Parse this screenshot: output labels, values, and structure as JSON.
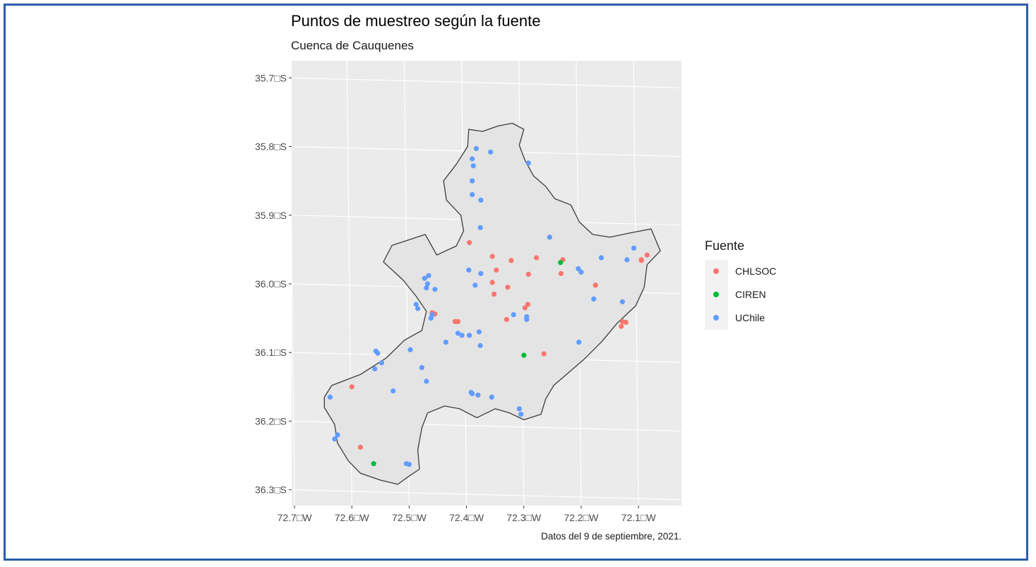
{
  "chart_data": {
    "type": "scatter",
    "title": "Puntos de muestreo según la fuente",
    "subtitle": "Cuenca de Cauquenes",
    "caption": "Datos del 9 de septiembre, 2021.",
    "xlabel": "",
    "ylabel": "",
    "xlim": [
      -72.705,
      -72.025
    ],
    "ylim": [
      -36.323,
      -35.675
    ],
    "grid": true,
    "legend_title": "Fuente",
    "legend_position": "right",
    "x_ticks": [
      {
        "value": -72.7,
        "label": "72.7□W"
      },
      {
        "value": -72.6,
        "label": "72.6□W"
      },
      {
        "value": -72.5,
        "label": "72.5□W"
      },
      {
        "value": -72.4,
        "label": "72.4□W"
      },
      {
        "value": -72.3,
        "label": "72.3□W"
      },
      {
        "value": -72.2,
        "label": "72.2□W"
      },
      {
        "value": -72.1,
        "label": "72.1□W"
      }
    ],
    "y_ticks": [
      {
        "value": -35.7,
        "label": "35.7□S"
      },
      {
        "value": -35.8,
        "label": "35.8□S"
      },
      {
        "value": -35.9,
        "label": "35.9□S"
      },
      {
        "value": -36.0,
        "label": "36.0□S"
      },
      {
        "value": -36.1,
        "label": "36.1□S"
      },
      {
        "value": -36.2,
        "label": "36.2□S"
      },
      {
        "value": -36.3,
        "label": "36.3□S"
      }
    ],
    "boundary": [
      [
        -72.648,
        -36.165
      ],
      [
        -72.635,
        -36.148
      ],
      [
        -72.585,
        -36.132
      ],
      [
        -72.54,
        -36.108
      ],
      [
        -72.508,
        -36.082
      ],
      [
        -72.478,
        -36.068
      ],
      [
        -72.47,
        -36.04
      ],
      [
        -72.488,
        -36.018
      ],
      [
        -72.51,
        -35.995
      ],
      [
        -72.545,
        -35.968
      ],
      [
        -72.53,
        -35.944
      ],
      [
        -72.472,
        -35.928
      ],
      [
        -72.452,
        -35.958
      ],
      [
        -72.418,
        -35.945
      ],
      [
        -72.405,
        -35.923
      ],
      [
        -72.41,
        -35.9
      ],
      [
        -72.435,
        -35.878
      ],
      [
        -72.44,
        -35.85
      ],
      [
        -72.418,
        -35.826
      ],
      [
        -72.398,
        -35.8
      ],
      [
        -72.396,
        -35.775
      ],
      [
        -72.372,
        -35.778
      ],
      [
        -72.345,
        -35.77
      ],
      [
        -72.32,
        -35.766
      ],
      [
        -72.3,
        -35.775
      ],
      [
        -72.308,
        -35.798
      ],
      [
        -72.298,
        -35.82
      ],
      [
        -72.283,
        -35.843
      ],
      [
        -72.262,
        -35.858
      ],
      [
        -72.246,
        -35.876
      ],
      [
        -72.218,
        -35.885
      ],
      [
        -72.203,
        -35.91
      ],
      [
        -72.18,
        -35.928
      ],
      [
        -72.15,
        -35.932
      ],
      [
        -72.11,
        -35.925
      ],
      [
        -72.078,
        -35.92
      ],
      [
        -72.062,
        -35.952
      ],
      [
        -72.085,
        -35.972
      ],
      [
        -72.09,
        -36.005
      ],
      [
        -72.105,
        -36.032
      ],
      [
        -72.138,
        -36.058
      ],
      [
        -72.165,
        -36.085
      ],
      [
        -72.195,
        -36.11
      ],
      [
        -72.22,
        -36.128
      ],
      [
        -72.248,
        -36.148
      ],
      [
        -72.262,
        -36.168
      ],
      [
        -72.27,
        -36.19
      ],
      [
        -72.3,
        -36.198
      ],
      [
        -72.325,
        -36.188
      ],
      [
        -72.35,
        -36.182
      ],
      [
        -72.382,
        -36.195
      ],
      [
        -72.412,
        -36.182
      ],
      [
        -72.438,
        -36.178
      ],
      [
        -72.468,
        -36.188
      ],
      [
        -72.478,
        -36.21
      ],
      [
        -72.485,
        -36.242
      ],
      [
        -72.482,
        -36.27
      ],
      [
        -72.5,
        -36.28
      ],
      [
        -72.52,
        -36.292
      ],
      [
        -72.55,
        -36.286
      ],
      [
        -72.585,
        -36.276
      ],
      [
        -72.606,
        -36.258
      ],
      [
        -72.625,
        -36.232
      ],
      [
        -72.63,
        -36.205
      ],
      [
        -72.648,
        -36.18
      ],
      [
        -72.648,
        -36.165
      ]
    ],
    "series": [
      {
        "name": "CHLSOC",
        "color": "#f8766d",
        "points": [
          [
            -72.395,
            -35.94
          ],
          [
            -72.355,
            -35.96
          ],
          [
            -72.348,
            -35.98
          ],
          [
            -72.322,
            -35.966
          ],
          [
            -72.278,
            -35.962
          ],
          [
            -72.232,
            -35.965
          ],
          [
            -72.085,
            -35.958
          ],
          [
            -72.095,
            -35.965
          ],
          [
            -72.355,
            -35.998
          ],
          [
            -72.352,
            -36.015
          ],
          [
            -72.328,
            -36.005
          ],
          [
            -72.293,
            -36.03
          ],
          [
            -72.298,
            -36.035
          ],
          [
            -72.292,
            -35.986
          ],
          [
            -72.235,
            -35.985
          ],
          [
            -72.175,
            -36.002
          ],
          [
            -72.46,
            -36.042
          ],
          [
            -72.455,
            -36.044
          ],
          [
            -72.42,
            -36.055
          ],
          [
            -72.415,
            -36.055
          ],
          [
            -72.33,
            -36.052
          ],
          [
            -72.265,
            -36.102
          ],
          [
            -72.128,
            -36.055
          ],
          [
            -72.122,
            -36.056
          ],
          [
            -72.13,
            -36.062
          ],
          [
            -72.095,
            -35.966
          ],
          [
            -72.6,
            -36.15
          ],
          [
            -72.585,
            -36.238
          ]
        ]
      },
      {
        "name": "CIREN",
        "color": "#00ba38",
        "points": [
          [
            -72.236,
            -35.969
          ],
          [
            -72.3,
            -36.104
          ],
          [
            -72.562,
            -36.262
          ]
        ]
      },
      {
        "name": "UChile",
        "color": "#619cff",
        "points": [
          [
            -72.383,
            -35.803
          ],
          [
            -72.358,
            -35.808
          ],
          [
            -72.39,
            -35.818
          ],
          [
            -72.388,
            -35.828
          ],
          [
            -72.292,
            -35.824
          ],
          [
            -72.39,
            -35.85
          ],
          [
            -72.39,
            -35.87
          ],
          [
            -72.375,
            -35.878
          ],
          [
            -72.376,
            -35.918
          ],
          [
            -72.255,
            -35.932
          ],
          [
            -72.108,
            -35.948
          ],
          [
            -72.165,
            -35.962
          ],
          [
            -72.12,
            -35.965
          ],
          [
            -72.396,
            -35.98
          ],
          [
            -72.375,
            -35.985
          ],
          [
            -72.2,
            -35.983
          ],
          [
            -72.205,
            -35.978
          ],
          [
            -72.466,
            -35.988
          ],
          [
            -72.473,
            -35.992
          ],
          [
            -72.468,
            -36.0
          ],
          [
            -72.47,
            -36.006
          ],
          [
            -72.455,
            -36.008
          ],
          [
            -72.385,
            -36.002
          ],
          [
            -72.178,
            -36.022
          ],
          [
            -72.488,
            -36.03
          ],
          [
            -72.485,
            -36.036
          ],
          [
            -72.462,
            -36.05
          ],
          [
            -72.46,
            -36.045
          ],
          [
            -72.318,
            -36.045
          ],
          [
            -72.295,
            -36.048
          ],
          [
            -72.295,
            -36.052
          ],
          [
            -72.128,
            -36.026
          ],
          [
            -72.415,
            -36.072
          ],
          [
            -72.408,
            -36.075
          ],
          [
            -72.395,
            -36.075
          ],
          [
            -72.378,
            -36.07
          ],
          [
            -72.436,
            -36.085
          ],
          [
            -72.376,
            -36.09
          ],
          [
            -72.204,
            -36.085
          ],
          [
            -72.558,
            -36.098
          ],
          [
            -72.555,
            -36.101
          ],
          [
            -72.498,
            -36.096
          ],
          [
            -72.548,
            -36.115
          ],
          [
            -72.478,
            -36.122
          ],
          [
            -72.56,
            -36.124
          ],
          [
            -72.47,
            -36.142
          ],
          [
            -72.528,
            -36.156
          ],
          [
            -72.392,
            -36.158
          ],
          [
            -72.39,
            -36.16
          ],
          [
            -72.38,
            -36.162
          ],
          [
            -72.356,
            -36.165
          ],
          [
            -72.308,
            -36.182
          ],
          [
            -72.305,
            -36.19
          ],
          [
            -72.638,
            -36.165
          ],
          [
            -72.625,
            -36.22
          ],
          [
            -72.63,
            -36.226
          ],
          [
            -72.505,
            -36.262
          ],
          [
            -72.5,
            -36.263
          ]
        ]
      }
    ]
  }
}
